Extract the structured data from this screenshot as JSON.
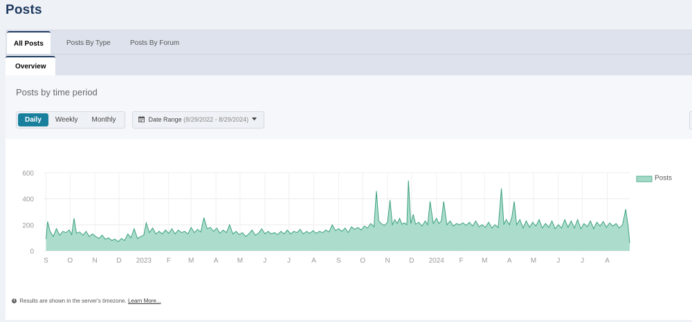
{
  "page": {
    "title": "Posts"
  },
  "tabs": [
    {
      "label": "All Posts",
      "active": true
    },
    {
      "label": "Posts By Type",
      "active": false
    },
    {
      "label": "Posts By Forum",
      "active": false
    }
  ],
  "subtabs": [
    {
      "label": "Overview",
      "active": true
    }
  ],
  "panel": {
    "heading": "Posts by time period",
    "periods": [
      {
        "label": "Daily",
        "active": true
      },
      {
        "label": "Weekly",
        "active": false
      },
      {
        "label": "Monthly",
        "active": false
      }
    ],
    "date_range": {
      "label": "Date Range",
      "value": "(8/29/2022 - 8/29/2024)",
      "icon": "calendar-icon"
    }
  },
  "footnote": {
    "text": "Results are shown in the server's timezone.",
    "link": "Learn More..."
  },
  "colors": {
    "accent": "#18809d",
    "series_fill": "#a3d9c7",
    "series_line": "#3a9f80"
  },
  "chart_data": {
    "type": "area",
    "x_start": "2022-08-29",
    "x_end": "2024-08-29",
    "ylim": [
      0,
      600
    ],
    "y_ticks": [
      0,
      200,
      400,
      600
    ],
    "x_tick_labels": [
      "S",
      "O",
      "N",
      "D",
      "2023",
      "F",
      "M",
      "A",
      "M",
      "J",
      "J",
      "A",
      "S",
      "O",
      "N",
      "D",
      "2024",
      "F",
      "M",
      "A",
      "M",
      "J",
      "J",
      "A"
    ],
    "legend_position": "top-right",
    "grid": true,
    "series": [
      {
        "name": "Posts",
        "points": [
          [
            "2022-09-01",
            90
          ],
          [
            "2022-09-03",
            225
          ],
          [
            "2022-09-06",
            150
          ],
          [
            "2022-09-10",
            110
          ],
          [
            "2022-09-14",
            170
          ],
          [
            "2022-09-18",
            120
          ],
          [
            "2022-09-22",
            150
          ],
          [
            "2022-09-26",
            140
          ],
          [
            "2022-09-30",
            160
          ],
          [
            "2022-10-03",
            125
          ],
          [
            "2022-10-06",
            250
          ],
          [
            "2022-10-09",
            135
          ],
          [
            "2022-10-13",
            145
          ],
          [
            "2022-10-17",
            120
          ],
          [
            "2022-10-21",
            150
          ],
          [
            "2022-10-25",
            110
          ],
          [
            "2022-10-29",
            130
          ],
          [
            "2022-11-02",
            110
          ],
          [
            "2022-11-06",
            95
          ],
          [
            "2022-11-10",
            120
          ],
          [
            "2022-11-14",
            90
          ],
          [
            "2022-11-18",
            100
          ],
          [
            "2022-11-22",
            80
          ],
          [
            "2022-11-26",
            90
          ],
          [
            "2022-11-30",
            70
          ],
          [
            "2022-12-04",
            95
          ],
          [
            "2022-12-08",
            80
          ],
          [
            "2022-12-12",
            130
          ],
          [
            "2022-12-16",
            100
          ],
          [
            "2022-12-20",
            170
          ],
          [
            "2022-12-24",
            95
          ],
          [
            "2022-12-28",
            110
          ],
          [
            "2023-01-01",
            120
          ],
          [
            "2023-01-04",
            215
          ],
          [
            "2023-01-08",
            140
          ],
          [
            "2023-01-12",
            175
          ],
          [
            "2023-01-16",
            130
          ],
          [
            "2023-01-20",
            150
          ],
          [
            "2023-01-24",
            130
          ],
          [
            "2023-01-28",
            160
          ],
          [
            "2023-02-01",
            135
          ],
          [
            "2023-02-05",
            170
          ],
          [
            "2023-02-09",
            130
          ],
          [
            "2023-02-13",
            160
          ],
          [
            "2023-02-17",
            140
          ],
          [
            "2023-02-21",
            150
          ],
          [
            "2023-02-25",
            130
          ],
          [
            "2023-03-01",
            180
          ],
          [
            "2023-03-05",
            140
          ],
          [
            "2023-03-09",
            165
          ],
          [
            "2023-03-13",
            145
          ],
          [
            "2023-03-17",
            255
          ],
          [
            "2023-03-21",
            170
          ],
          [
            "2023-03-25",
            180
          ],
          [
            "2023-03-29",
            150
          ],
          [
            "2023-04-02",
            175
          ],
          [
            "2023-04-06",
            135
          ],
          [
            "2023-04-10",
            160
          ],
          [
            "2023-04-14",
            140
          ],
          [
            "2023-04-18",
            200
          ],
          [
            "2023-04-22",
            130
          ],
          [
            "2023-04-26",
            150
          ],
          [
            "2023-04-30",
            125
          ],
          [
            "2023-05-04",
            140
          ],
          [
            "2023-05-08",
            110
          ],
          [
            "2023-05-12",
            130
          ],
          [
            "2023-05-16",
            160
          ],
          [
            "2023-05-20",
            120
          ],
          [
            "2023-05-24",
            135
          ],
          [
            "2023-05-28",
            170
          ],
          [
            "2023-06-01",
            130
          ],
          [
            "2023-06-05",
            150
          ],
          [
            "2023-06-09",
            130
          ],
          [
            "2023-06-13",
            140
          ],
          [
            "2023-06-17",
            125
          ],
          [
            "2023-06-21",
            150
          ],
          [
            "2023-06-25",
            130
          ],
          [
            "2023-06-29",
            160
          ],
          [
            "2023-07-03",
            130
          ],
          [
            "2023-07-07",
            150
          ],
          [
            "2023-07-11",
            140
          ],
          [
            "2023-07-15",
            165
          ],
          [
            "2023-07-19",
            130
          ],
          [
            "2023-07-23",
            150
          ],
          [
            "2023-07-27",
            135
          ],
          [
            "2023-07-31",
            155
          ],
          [
            "2023-08-04",
            135
          ],
          [
            "2023-08-08",
            150
          ],
          [
            "2023-08-12",
            140
          ],
          [
            "2023-08-16",
            160
          ],
          [
            "2023-08-20",
            145
          ],
          [
            "2023-08-24",
            200
          ],
          [
            "2023-08-28",
            155
          ],
          [
            "2023-09-01",
            170
          ],
          [
            "2023-09-05",
            150
          ],
          [
            "2023-09-09",
            175
          ],
          [
            "2023-09-13",
            140
          ],
          [
            "2023-09-17",
            185
          ],
          [
            "2023-09-21",
            165
          ],
          [
            "2023-09-25",
            180
          ],
          [
            "2023-09-29",
            160
          ],
          [
            "2023-10-03",
            190
          ],
          [
            "2023-10-07",
            175
          ],
          [
            "2023-10-11",
            210
          ],
          [
            "2023-10-15",
            185
          ],
          [
            "2023-10-18",
            460
          ],
          [
            "2023-10-21",
            230
          ],
          [
            "2023-10-24",
            210
          ],
          [
            "2023-10-28",
            195
          ],
          [
            "2023-11-01",
            220
          ],
          [
            "2023-11-04",
            390
          ],
          [
            "2023-11-07",
            200
          ],
          [
            "2023-11-10",
            240
          ],
          [
            "2023-11-13",
            210
          ],
          [
            "2023-11-16",
            250
          ],
          [
            "2023-11-19",
            205
          ],
          [
            "2023-11-22",
            215
          ],
          [
            "2023-11-25",
            200
          ],
          [
            "2023-11-27",
            540
          ],
          [
            "2023-11-30",
            210
          ],
          [
            "2023-12-03",
            280
          ],
          [
            "2023-12-06",
            205
          ],
          [
            "2023-12-10",
            220
          ],
          [
            "2023-12-14",
            190
          ],
          [
            "2023-12-18",
            230
          ],
          [
            "2023-12-21",
            200
          ],
          [
            "2023-12-24",
            380
          ],
          [
            "2023-12-28",
            210
          ],
          [
            "2024-01-01",
            250
          ],
          [
            "2024-01-04",
            210
          ],
          [
            "2024-01-07",
            230
          ],
          [
            "2024-01-10",
            380
          ],
          [
            "2024-01-14",
            200
          ],
          [
            "2024-01-18",
            230
          ],
          [
            "2024-01-22",
            190
          ],
          [
            "2024-01-26",
            210
          ],
          [
            "2024-01-30",
            200
          ],
          [
            "2024-02-03",
            215
          ],
          [
            "2024-02-07",
            195
          ],
          [
            "2024-02-11",
            220
          ],
          [
            "2024-02-15",
            190
          ],
          [
            "2024-02-19",
            230
          ],
          [
            "2024-02-23",
            185
          ],
          [
            "2024-02-27",
            200
          ],
          [
            "2024-03-02",
            180
          ],
          [
            "2024-03-06",
            220
          ],
          [
            "2024-03-10",
            175
          ],
          [
            "2024-03-14",
            200
          ],
          [
            "2024-03-18",
            180
          ],
          [
            "2024-03-22",
            480
          ],
          [
            "2024-03-25",
            205
          ],
          [
            "2024-03-28",
            240
          ],
          [
            "2024-04-01",
            200
          ],
          [
            "2024-04-04",
            260
          ],
          [
            "2024-04-07",
            380
          ],
          [
            "2024-04-10",
            200
          ],
          [
            "2024-04-14",
            240
          ],
          [
            "2024-04-18",
            175
          ],
          [
            "2024-04-22",
            230
          ],
          [
            "2024-04-26",
            180
          ],
          [
            "2024-04-30",
            220
          ],
          [
            "2024-05-04",
            190
          ],
          [
            "2024-05-08",
            240
          ],
          [
            "2024-05-12",
            175
          ],
          [
            "2024-05-16",
            210
          ],
          [
            "2024-05-20",
            180
          ],
          [
            "2024-05-24",
            230
          ],
          [
            "2024-05-28",
            170
          ],
          [
            "2024-06-01",
            200
          ],
          [
            "2024-06-05",
            175
          ],
          [
            "2024-06-09",
            240
          ],
          [
            "2024-06-13",
            180
          ],
          [
            "2024-06-17",
            230
          ],
          [
            "2024-06-21",
            175
          ],
          [
            "2024-06-25",
            240
          ],
          [
            "2024-06-29",
            170
          ],
          [
            "2024-07-03",
            210
          ],
          [
            "2024-07-07",
            185
          ],
          [
            "2024-07-11",
            230
          ],
          [
            "2024-07-15",
            170
          ],
          [
            "2024-07-19",
            220
          ],
          [
            "2024-07-23",
            190
          ],
          [
            "2024-07-27",
            225
          ],
          [
            "2024-07-31",
            180
          ],
          [
            "2024-08-04",
            215
          ],
          [
            "2024-08-08",
            190
          ],
          [
            "2024-08-12",
            210
          ],
          [
            "2024-08-16",
            175
          ],
          [
            "2024-08-20",
            200
          ],
          [
            "2024-08-24",
            320
          ],
          [
            "2024-08-27",
            190
          ],
          [
            "2024-08-29",
            60
          ]
        ]
      }
    ]
  }
}
